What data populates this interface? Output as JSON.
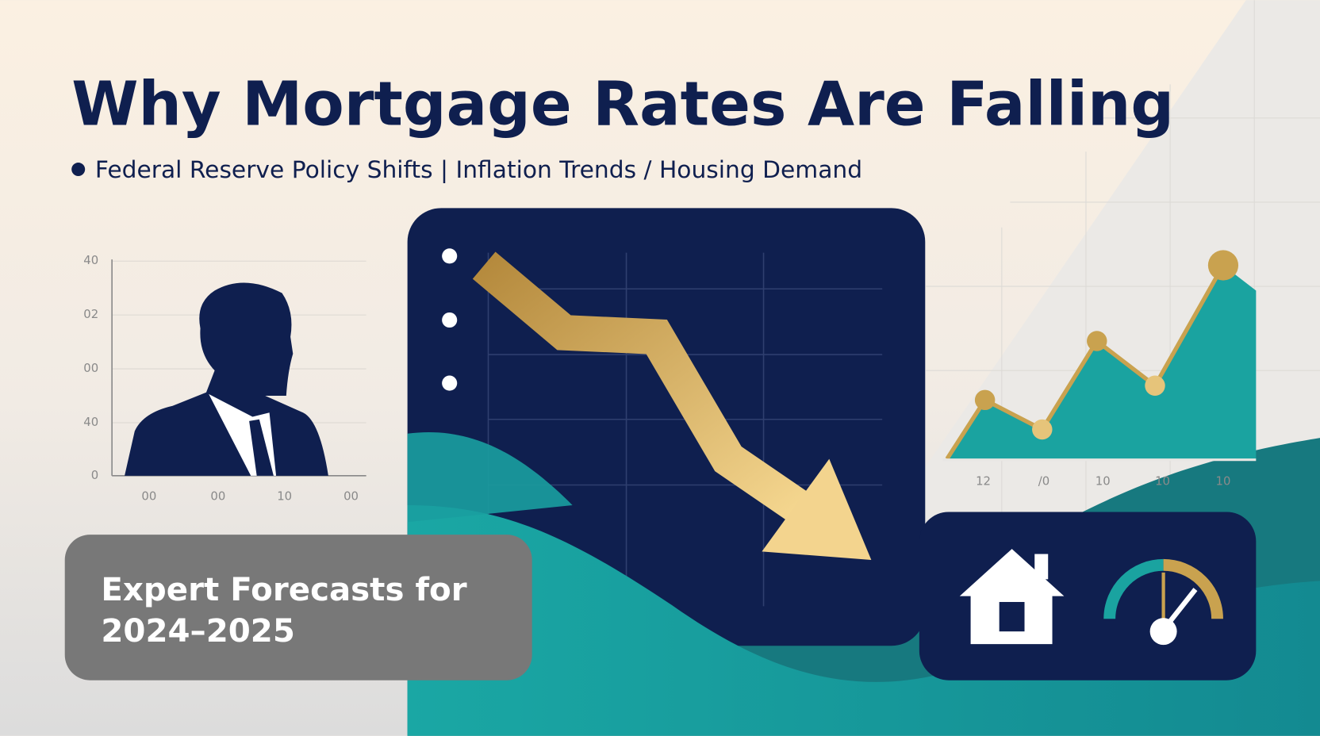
{
  "header": {
    "title": "Why Mortgage Rates Are Falling",
    "subtitle": "Federal Reserve Policy Shifts | Inflation Trends / Housing Demand"
  },
  "left_chart": {
    "y_labels": [
      "40",
      "02",
      "00",
      "40",
      "0"
    ],
    "x_labels": [
      "00",
      "00",
      "10",
      "00"
    ]
  },
  "right_chart": {
    "x_labels": [
      "12",
      "/0",
      "10",
      "10",
      "10"
    ]
  },
  "callout": {
    "lines": [
      "Expert Forecasts for",
      "2024–2025"
    ]
  }
}
